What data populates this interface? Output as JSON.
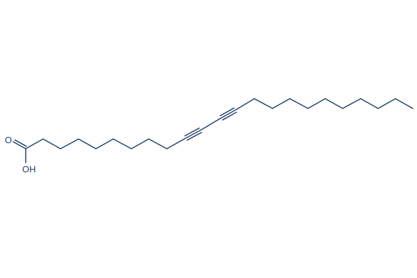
{
  "molecule": {
    "atom_labels": {
      "carbonyl_oxygen": "O",
      "hydroxyl": "OH"
    },
    "bond_color": "#23416a",
    "bonds": [
      "double",
      "single",
      "single",
      "single",
      "single",
      "single",
      "single",
      "single",
      "single",
      "single",
      "triple",
      "single",
      "triple",
      "single",
      "single",
      "single",
      "single",
      "single",
      "single",
      "single",
      "single",
      "single",
      "single"
    ]
  }
}
